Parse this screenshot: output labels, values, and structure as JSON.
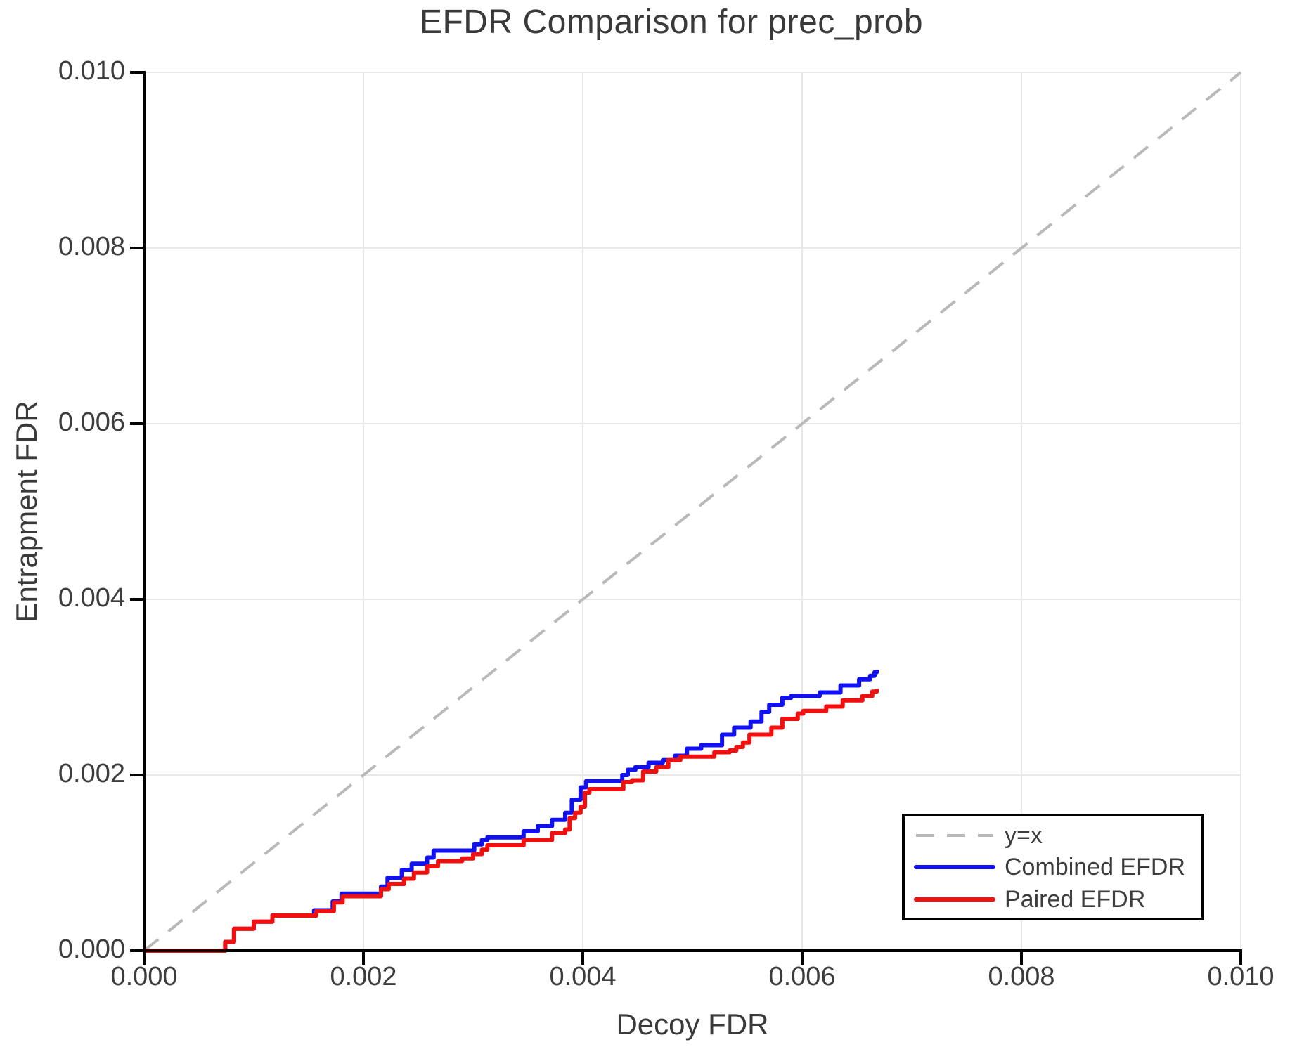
{
  "chart_data": {
    "type": "line",
    "title": "EFDR Comparison for prec_prob",
    "xlabel": "Decoy FDR",
    "ylabel": "Entrapment FDR",
    "xlim": [
      0,
      0.01
    ],
    "ylim": [
      0,
      0.01
    ],
    "x_ticks": [
      0,
      0.002,
      0.004,
      0.006,
      0.008,
      0.01
    ],
    "y_ticks": [
      0,
      0.002,
      0.004,
      0.006,
      0.008,
      0.01
    ],
    "x_tick_labels": [
      "0.000",
      "0.002",
      "0.004",
      "0.006",
      "0.008",
      "0.010"
    ],
    "y_tick_labels": [
      "0.000",
      "0.002",
      "0.004",
      "0.006",
      "0.008",
      "0.010"
    ],
    "grid": true,
    "legend_position": "lower right",
    "series": [
      {
        "name": "y=x",
        "color": "#b9b9b9",
        "style": "dashed",
        "step": false,
        "width": 4,
        "points": [
          [
            0,
            0
          ],
          [
            0.01,
            0.01
          ]
        ]
      },
      {
        "name": "Combined EFDR",
        "color": "#1010f0",
        "style": "solid",
        "step": true,
        "width": 6,
        "points": [
          [
            0,
            0
          ],
          [
            0.00074,
            0.0001
          ],
          [
            0.00082,
            0.00025
          ],
          [
            0.001,
            0.00033
          ],
          [
            0.00117,
            0.0004
          ],
          [
            0.00155,
            0.00046
          ],
          [
            0.00172,
            0.00056
          ],
          [
            0.0018,
            0.00065
          ],
          [
            0.00216,
            0.00073
          ],
          [
            0.00222,
            0.00083
          ],
          [
            0.00235,
            0.00092
          ],
          [
            0.00244,
            0.00099
          ],
          [
            0.00258,
            0.00106
          ],
          [
            0.00264,
            0.00114
          ],
          [
            0.00301,
            0.00121
          ],
          [
            0.00308,
            0.00126
          ],
          [
            0.00313,
            0.00129
          ],
          [
            0.00346,
            0.00136
          ],
          [
            0.00359,
            0.00142
          ],
          [
            0.00372,
            0.00149
          ],
          [
            0.00384,
            0.00157
          ],
          [
            0.0039,
            0.00172
          ],
          [
            0.00398,
            0.00186
          ],
          [
            0.00403,
            0.00193
          ],
          [
            0.00436,
            0.002
          ],
          [
            0.00441,
            0.00206
          ],
          [
            0.00448,
            0.00209
          ],
          [
            0.0046,
            0.00214
          ],
          [
            0.00473,
            0.00217
          ],
          [
            0.00484,
            0.00222
          ],
          [
            0.00495,
            0.0023
          ],
          [
            0.00508,
            0.00234
          ],
          [
            0.00527,
            0.00246
          ],
          [
            0.00538,
            0.00254
          ],
          [
            0.00553,
            0.00261
          ],
          [
            0.00563,
            0.00272
          ],
          [
            0.0057,
            0.0028
          ],
          [
            0.00582,
            0.00288
          ],
          [
            0.0059,
            0.0029
          ],
          [
            0.00616,
            0.00294
          ],
          [
            0.00635,
            0.00302
          ],
          [
            0.00652,
            0.00309
          ],
          [
            0.00662,
            0.00313
          ],
          [
            0.00666,
            0.00317
          ],
          [
            0.00668,
            0.0032
          ]
        ]
      },
      {
        "name": "Paired EFDR",
        "color": "#f01010",
        "style": "solid",
        "step": true,
        "width": 6,
        "points": [
          [
            0,
            0
          ],
          [
            0.00074,
            0.0001
          ],
          [
            0.00082,
            0.00025
          ],
          [
            0.001,
            0.00033
          ],
          [
            0.00117,
            0.0004
          ],
          [
            0.00157,
            0.00045
          ],
          [
            0.00173,
            0.00055
          ],
          [
            0.00181,
            0.00062
          ],
          [
            0.00216,
            0.0007
          ],
          [
            0.00223,
            0.00076
          ],
          [
            0.00237,
            0.00082
          ],
          [
            0.00246,
            0.00089
          ],
          [
            0.00258,
            0.00096
          ],
          [
            0.00268,
            0.00102
          ],
          [
            0.0029,
            0.00105
          ],
          [
            0.003,
            0.0011
          ],
          [
            0.00308,
            0.00115
          ],
          [
            0.00313,
            0.0012
          ],
          [
            0.00346,
            0.00126
          ],
          [
            0.00372,
            0.00134
          ],
          [
            0.00384,
            0.00138
          ],
          [
            0.00388,
            0.00151
          ],
          [
            0.00393,
            0.00157
          ],
          [
            0.00398,
            0.00164
          ],
          [
            0.00402,
            0.0018
          ],
          [
            0.00406,
            0.00184
          ],
          [
            0.00437,
            0.00192
          ],
          [
            0.00445,
            0.00194
          ],
          [
            0.00455,
            0.00204
          ],
          [
            0.00467,
            0.00209
          ],
          [
            0.00478,
            0.00217
          ],
          [
            0.00489,
            0.00221
          ],
          [
            0.0052,
            0.00226
          ],
          [
            0.00534,
            0.00228
          ],
          [
            0.0054,
            0.00232
          ],
          [
            0.00546,
            0.00237
          ],
          [
            0.00552,
            0.00246
          ],
          [
            0.00572,
            0.00254
          ],
          [
            0.00582,
            0.00264
          ],
          [
            0.00596,
            0.0027
          ],
          [
            0.00601,
            0.00273
          ],
          [
            0.00622,
            0.00278
          ],
          [
            0.00637,
            0.00285
          ],
          [
            0.00655,
            0.0029
          ],
          [
            0.00664,
            0.00295
          ],
          [
            0.00668,
            0.00298
          ]
        ]
      }
    ]
  }
}
